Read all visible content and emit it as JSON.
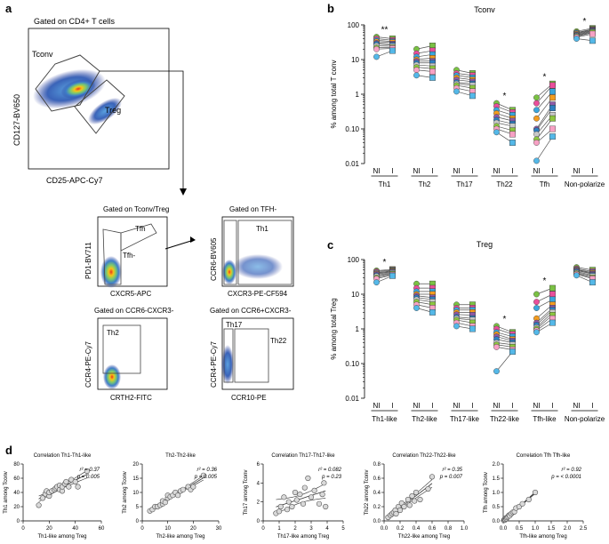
{
  "panel_letters": {
    "a": "a",
    "b": "b",
    "c": "c",
    "d": "d"
  },
  "flow": {
    "top": {
      "gate_title": "Gated on CD4+ T cells",
      "ylabel": "CD127-BV650",
      "xlabel": "CD25-APC-Cy7",
      "gate1": "Tconv",
      "gate2": "Treg"
    },
    "p1": {
      "gate_title": "Gated on Tconv/Treg",
      "ylabel": "PD1-BV711",
      "xlabel": "CXCR5-APC",
      "gate1": "Tfh",
      "gate2": "Tfh-"
    },
    "p2": {
      "gate_title": "Gated on TFH-",
      "ylabel": "CCR6-BV605",
      "xlabel": "CXCR3-PE-CF594",
      "gate1": "Th1"
    },
    "p3": {
      "gate_title": "Gated on CCR6-CXCR3-",
      "ylabel": "CCR4-PE-Cy7",
      "xlabel": "CRTH2-FITC",
      "gate1": "Th2"
    },
    "p4": {
      "gate_title": "Gated on CCR6+CXCR3-",
      "ylabel": "CCR4-PE-Cy7",
      "xlabel": "CCR10-PE",
      "gate1": "Th17",
      "gate2": "Th22"
    }
  },
  "colors": {
    "subjects": [
      "#7ac143",
      "#e94f9b",
      "#3aa6dd",
      "#f39c1f",
      "#8e5aa8",
      "#2e7fc0",
      "#c8c8c8",
      "#8dc63f",
      "#f7a1c4",
      "#54b8e8",
      "#e8d04a"
    ]
  },
  "chart_data": [
    {
      "type": "scatter",
      "panel": "b",
      "title": "Tconv",
      "ylabel": "% among total T conv",
      "yscale": "log",
      "ylim": [
        0.01,
        100
      ],
      "yticks": [
        "0.01",
        "0.10",
        "1",
        "10",
        "100"
      ],
      "pair_labels": [
        "NI",
        "I"
      ],
      "groups": [
        {
          "name": "Th1",
          "sig": "**",
          "NI": [
            45,
            40,
            36,
            33,
            30,
            28,
            25,
            22,
            20,
            12
          ],
          "I": [
            40,
            36,
            33,
            31,
            28,
            26,
            24,
            22,
            21,
            18
          ]
        },
        {
          "name": "Th2",
          "sig": "",
          "NI": [
            20,
            15,
            12,
            10,
            9,
            8,
            7,
            6,
            5,
            3.5
          ],
          "I": [
            25,
            18,
            14,
            11,
            9,
            8,
            6.5,
            5.5,
            4.5,
            3
          ]
        },
        {
          "name": "Th17",
          "sig": "",
          "NI": [
            5,
            4,
            3.5,
            3,
            2.6,
            2.2,
            2,
            1.8,
            1.5,
            1.2
          ],
          "I": [
            4,
            3.5,
            3,
            2.6,
            2.3,
            2,
            1.8,
            1.5,
            1.2,
            0.9
          ]
        },
        {
          "name": "Th22",
          "sig": "*",
          "NI": [
            0.55,
            0.45,
            0.35,
            0.28,
            0.22,
            0.18,
            0.15,
            0.12,
            0.1,
            0.08
          ],
          "I": [
            0.35,
            0.3,
            0.25,
            0.2,
            0.17,
            0.14,
            0.12,
            0.09,
            0.07,
            0.04
          ]
        },
        {
          "name": "Tfh",
          "sig": "*",
          "NI": [
            0.8,
            0.55,
            0.35,
            0.2,
            0.1,
            0.09,
            0.07,
            0.05,
            0.04,
            0.012
          ],
          "I": [
            2,
            1.8,
            1.2,
            0.8,
            0.5,
            0.4,
            0.25,
            0.2,
            0.1,
            0.06
          ]
        },
        {
          "name": "Non-polarize",
          "sig": "*",
          "NI": [
            65,
            60,
            58,
            55,
            52,
            50,
            48,
            46,
            44,
            40
          ],
          "I": [
            80,
            75,
            72,
            70,
            68,
            65,
            62,
            60,
            55,
            35
          ]
        }
      ]
    },
    {
      "type": "scatter",
      "panel": "c",
      "title": "Treg",
      "ylabel": "% among total Treg",
      "yscale": "log",
      "ylim": [
        0.01,
        100
      ],
      "yticks": [
        "0.01",
        "0.10",
        "1",
        "10",
        "100"
      ],
      "pair_labels": [
        "NI",
        "I"
      ],
      "groups": [
        {
          "name": "Th1-like",
          "sig": "*",
          "NI": [
            48,
            45,
            42,
            40,
            38,
            35,
            33,
            30,
            28,
            22
          ],
          "I": [
            52,
            50,
            48,
            46,
            44,
            42,
            40,
            38,
            36,
            34
          ]
        },
        {
          "name": "Th2-like",
          "sig": "",
          "NI": [
            20,
            15,
            12,
            10,
            9,
            8,
            7,
            6,
            5,
            4
          ],
          "I": [
            20,
            15,
            12,
            10,
            8,
            7,
            6,
            5,
            4,
            3
          ]
        },
        {
          "name": "Th17-like",
          "sig": "",
          "NI": [
            5,
            4,
            3.5,
            3,
            2.6,
            2.2,
            2,
            1.8,
            1.5,
            1.2
          ],
          "I": [
            5,
            4,
            3.5,
            3,
            2.5,
            2,
            1.8,
            1.5,
            1.2,
            1
          ]
        },
        {
          "name": "Th22-like",
          "sig": "*",
          "NI": [
            1.2,
            1,
            0.8,
            0.7,
            0.6,
            0.5,
            0.4,
            0.35,
            0.3,
            0.06
          ],
          "I": [
            0.8,
            0.7,
            0.6,
            0.5,
            0.45,
            0.4,
            0.35,
            0.3,
            0.25,
            0.22
          ]
        },
        {
          "name": "Tfh-like",
          "sig": "*",
          "NI": [
            10,
            6,
            4,
            2,
            1.5,
            1.3,
            1.1,
            1,
            0.9,
            0.8
          ],
          "I": [
            15,
            10,
            7,
            5,
            4,
            3.5,
            3,
            2.5,
            2,
            1.5
          ]
        },
        {
          "name": "Non-polarize",
          "sig": "",
          "NI": [
            60,
            55,
            52,
            50,
            48,
            45,
            42,
            40,
            38,
            35
          ],
          "I": [
            50,
            45,
            42,
            40,
            38,
            35,
            33,
            30,
            28,
            22
          ]
        }
      ]
    },
    {
      "type": "scatter",
      "panel": "d1",
      "title": "Correlation Th1-Th1-like",
      "xlabel": "Th1-like among Treg",
      "ylabel": "Th1 among Tconv",
      "xlim": [
        0,
        60
      ],
      "ylim": [
        0,
        80
      ],
      "xticks": [
        "0",
        "20",
        "40",
        "60"
      ],
      "yticks": [
        "0",
        "20",
        "40",
        "60",
        "80"
      ],
      "r2": "r² = 0.37",
      "p": "p = 0.005",
      "x": [
        12,
        15,
        17,
        18,
        20,
        20,
        22,
        24,
        25,
        26,
        28,
        28,
        30,
        30,
        32,
        33,
        35,
        37,
        40,
        42,
        49
      ],
      "y": [
        22,
        32,
        38,
        42,
        35,
        40,
        42,
        44,
        46,
        48,
        44,
        50,
        42,
        48,
        52,
        55,
        48,
        58,
        55,
        48,
        70
      ]
    },
    {
      "type": "scatter",
      "panel": "d2",
      "title": "Th2-Th2-like",
      "xlabel": "Th2-like among Treg",
      "ylabel": "Th2 among Tconv",
      "xlim": [
        0,
        30
      ],
      "ylim": [
        0,
        20
      ],
      "xticks": [
        "0",
        "10",
        "20",
        "30"
      ],
      "yticks": [
        "0",
        "5",
        "10",
        "15",
        "20"
      ],
      "r2": "r² = 0.36",
      "p": "p = 0.005",
      "x": [
        3,
        4,
        5,
        6,
        7,
        8,
        8,
        9,
        10,
        10,
        11,
        12,
        13,
        14,
        15,
        16,
        18,
        19,
        20,
        24
      ],
      "y": [
        3.5,
        4,
        5,
        5,
        5.5,
        6,
        7,
        6.5,
        8,
        9,
        8.5,
        9,
        10,
        9,
        10.5,
        11,
        12,
        11,
        12,
        16
      ]
    },
    {
      "type": "scatter",
      "panel": "d3",
      "title": "Correlation Th17-Th17-like",
      "xlabel": "Th17-like among Treg",
      "ylabel": "Th17 among Tconv",
      "xlim": [
        0,
        5
      ],
      "ylim": [
        0,
        6
      ],
      "xticks": [
        "0",
        "1",
        "2",
        "3",
        "4",
        "5"
      ],
      "yticks": [
        "0",
        "2",
        "4",
        "6"
      ],
      "r2": "r² = 0.082",
      "p": "p = 0.23",
      "x": [
        0.8,
        1.0,
        1.1,
        1.3,
        1.5,
        1.6,
        1.8,
        2.0,
        2.1,
        2.3,
        2.5,
        2.6,
        2.8,
        3.0,
        3.2,
        3.5,
        3.7,
        3.8,
        3.9
      ],
      "y": [
        0.8,
        1.0,
        1.5,
        2.5,
        1.2,
        2.0,
        1.5,
        3.0,
        2.2,
        2.8,
        1.8,
        3.5,
        4.5,
        2.5,
        3.2,
        1.8,
        2.8,
        4.0,
        1.5
      ]
    },
    {
      "type": "scatter",
      "panel": "d4",
      "title": "Correlation Th22-Th22-like",
      "xlabel": "Th22-like among Treg",
      "ylabel": "Th22 among Tconv",
      "xlim": [
        0,
        1.0
      ],
      "ylim": [
        0,
        0.8
      ],
      "xticks": [
        "0.0",
        "0.2",
        "0.4",
        "0.6",
        "0.8",
        "1.0"
      ],
      "yticks": [
        "0.0",
        "0.2",
        "0.4",
        "0.6",
        "0.8"
      ],
      "r2": "r² = 0.35",
      "p": "p = 0.007",
      "x": [
        0.05,
        0.08,
        0.1,
        0.12,
        0.14,
        0.15,
        0.18,
        0.2,
        0.22,
        0.25,
        0.3,
        0.32,
        0.35,
        0.38,
        0.4,
        0.45,
        0.55,
        0.6
      ],
      "y": [
        0.05,
        0.08,
        0.1,
        0.12,
        0.15,
        0.1,
        0.2,
        0.15,
        0.25,
        0.2,
        0.3,
        0.22,
        0.35,
        0.28,
        0.4,
        0.3,
        0.45,
        0.62
      ]
    },
    {
      "type": "scatter",
      "panel": "d5",
      "title": "Correlation Tfh Tfh-like",
      "xlabel": "Tfh-like among Treg",
      "ylabel": "Tfh among Tconv",
      "xlim": [
        0,
        2.5
      ],
      "ylim": [
        0,
        2.0
      ],
      "xticks": [
        "0.0",
        "0.5",
        "1.0",
        "1.5",
        "2.0",
        "2.5"
      ],
      "yticks": [
        "0.0",
        "0.5",
        "1.0",
        "1.5",
        "2.0"
      ],
      "r2": "r² = 0.92",
      "p": "p = < 0.0001",
      "x": [
        0.02,
        0.04,
        0.05,
        0.06,
        0.08,
        0.1,
        0.12,
        0.15,
        0.18,
        0.2,
        0.25,
        0.3,
        0.35,
        0.4,
        0.5,
        0.6,
        0.8,
        1.0
      ],
      "y": [
        0.02,
        0.05,
        0.03,
        0.06,
        0.1,
        0.08,
        0.12,
        0.15,
        0.2,
        0.18,
        0.25,
        0.3,
        0.32,
        0.45,
        0.5,
        0.6,
        0.75,
        1.0
      ]
    }
  ]
}
